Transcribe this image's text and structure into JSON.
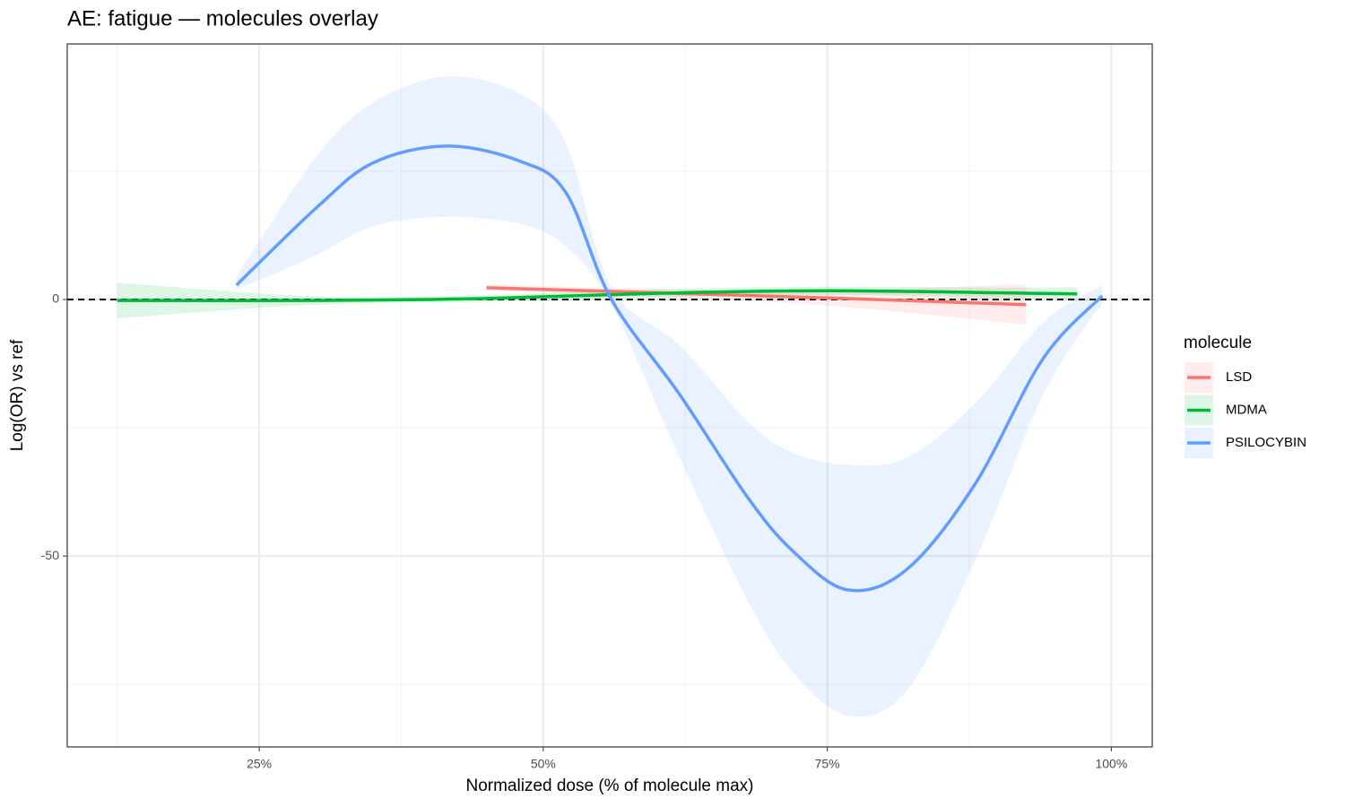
{
  "chart_data": {
    "type": "line",
    "title": "AE: fatigue — molecules overlay",
    "x_label": "Normalized dose (% of molecule max)",
    "y_label": "Log(OR) vs ref",
    "legend_title": "molecule",
    "legend_position": "right",
    "grid": true,
    "hline": 0,
    "xlim": [
      0.081,
      1.036
    ],
    "ylim": [
      -87.2,
      49.8
    ],
    "xticks": [
      {
        "value": 0.25,
        "label": "25%"
      },
      {
        "value": 0.5,
        "label": "50%"
      },
      {
        "value": 0.75,
        "label": "75%"
      },
      {
        "value": 1,
        "label": "100%"
      }
    ],
    "yticks": [
      -50,
      0
    ],
    "x_minor_ticks": [
      0.125,
      0.375,
      0.625,
      0.875
    ],
    "y_minor_ticks": [
      -75,
      -25,
      25
    ],
    "series": [
      {
        "name": "LSD",
        "color": "#F8766D",
        "x": [
          0.45,
          0.6,
          0.75,
          0.925
        ],
        "values": [
          2.3,
          1.3,
          0.3,
          -1.0
        ],
        "lower": [
          1.7,
          0.5,
          -1.2,
          -4.9
        ],
        "upper": [
          2.9,
          2.1,
          1.8,
          3.0
        ]
      },
      {
        "name": "MDMA",
        "color": "#00BA38",
        "x": [
          0.125,
          0.3,
          0.45,
          0.6,
          0.75,
          0.9,
          0.97
        ],
        "values": [
          -0.2,
          -0.2,
          0.2,
          1.2,
          1.7,
          1.3,
          1.1
        ],
        "lower": [
          -3.7,
          -1.0,
          -0.5,
          0.4,
          0.9,
          0.3,
          -0.2
        ],
        "upper": [
          3.3,
          0.6,
          0.9,
          2.0,
          2.5,
          2.3,
          2.4
        ]
      },
      {
        "name": "PSILOCYBIN",
        "color": "#619CFF",
        "x": [
          0.23,
          0.3,
          0.35,
          0.415,
          0.48,
          0.52,
          0.56,
          0.62,
          0.68,
          0.72,
          0.768,
          0.82,
          0.88,
          0.94,
          0.992
        ],
        "values": [
          2.8,
          17.8,
          26.6,
          29.9,
          26.9,
          20.8,
          0,
          -18.5,
          -38.6,
          -49.1,
          -56.6,
          -52.6,
          -36,
          -11.5,
          0.7
        ],
        "lower": [
          1.9,
          8.6,
          14.3,
          16.1,
          14.7,
          10.3,
          -1,
          -30.8,
          -58.7,
          -72.7,
          -81.1,
          -76.2,
          -50.9,
          -18.5,
          -0.7
        ],
        "upper": [
          4.5,
          27.8,
          38.3,
          43.5,
          40,
          30.4,
          2.4,
          -8.9,
          -23.8,
          -29.9,
          -32.2,
          -30.8,
          -20.3,
          -4.5,
          2.8
        ]
      }
    ]
  }
}
